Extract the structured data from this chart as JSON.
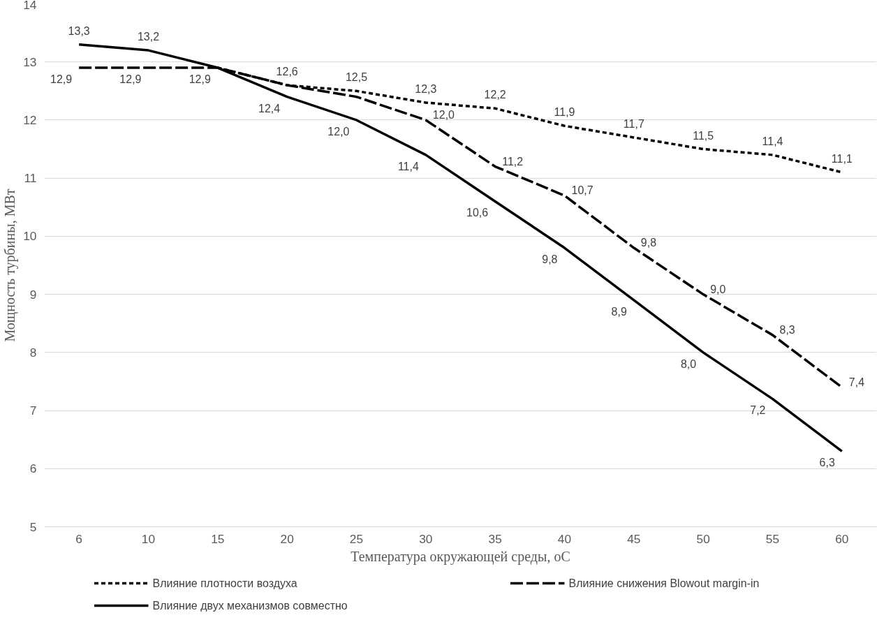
{
  "chart_data": {
    "type": "line",
    "xlabel": "Температура окружающей среды, оС",
    "ylabel": "Мощность турбины, МВт",
    "categories": [
      "6",
      "10",
      "15",
      "20",
      "25",
      "30",
      "35",
      "40",
      "45",
      "50",
      "55",
      "60"
    ],
    "series": [
      {
        "name": "Влияние плотности воздуха",
        "color": "#000000",
        "line_style": "dashed",
        "values": [
          null,
          null,
          12.9,
          12.6,
          12.5,
          12.3,
          12.2,
          11.9,
          11.7,
          11.5,
          11.4,
          11.1
        ],
        "value_labels": [
          null,
          null,
          "12,9",
          "12,6",
          "12,5",
          "12,3",
          "12,2",
          "11,9",
          "11,7",
          "11,5",
          "11,4",
          "11,1"
        ]
      },
      {
        "name": "Влияние снижения Blowout margin-in",
        "color": "#000000",
        "line_style": "dashed",
        "values": [
          12.9,
          12.9,
          12.9,
          12.6,
          12.4,
          12.0,
          11.2,
          10.7,
          9.8,
          9.0,
          8.3,
          7.4
        ],
        "value_labels": [
          "12,9",
          "12,9",
          null,
          null,
          null,
          "12,0",
          "11,2",
          "10,7",
          "9,8",
          "9,0",
          "8,3",
          "7,4"
        ]
      },
      {
        "name": "Влияние двух механизмов совместно",
        "color": "#000000",
        "line_style": "solid",
        "values": [
          13.3,
          13.2,
          12.9,
          12.4,
          12.0,
          11.4,
          10.6,
          9.8,
          8.9,
          8.0,
          7.2,
          6.3
        ],
        "value_labels": [
          "13,3",
          "13,2",
          null,
          "12,4",
          "12,0",
          "11,4",
          "10,6",
          "9,8",
          "8,9",
          "8,0",
          "7,2",
          "6,3"
        ]
      }
    ],
    "ylim": [
      5,
      14
    ],
    "yticks": [
      5,
      6,
      7,
      8,
      9,
      10,
      11,
      12,
      13,
      14
    ],
    "grid": "y",
    "legend": "bottom"
  }
}
